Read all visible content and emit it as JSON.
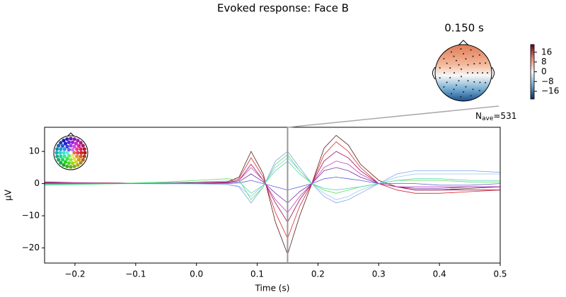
{
  "chart_data": {
    "type": "line",
    "title": "Evoked response: Face B",
    "xlabel": "Time (s)",
    "ylabel": "µV",
    "x": [
      -0.25,
      -0.2,
      -0.15,
      -0.1,
      -0.05,
      0,
      0.05,
      0.07,
      0.09,
      0.11,
      0.13,
      0.15,
      0.17,
      0.19,
      0.21,
      0.23,
      0.25,
      0.27,
      0.3,
      0.33,
      0.36,
      0.4,
      0.45,
      0.5
    ],
    "xlim": [
      -0.25,
      0.5
    ],
    "xticks": [
      {
        "value": -0.2,
        "label": "−0.2"
      },
      {
        "value": -0.1,
        "label": "−0.1"
      },
      {
        "value": 0,
        "label": "0.0"
      },
      0.1,
      0.2,
      0.3,
      0.4,
      0.5
    ],
    "ylim": [
      -24.7,
      17.5
    ],
    "yticks": [
      10,
      0,
      {
        "value": -10,
        "label": "−10"
      },
      {
        "value": -20,
        "label": "−20"
      }
    ],
    "series": [
      {
        "color": "#5a1a1a",
        "values": [
          0.5,
          0.3,
          0.2,
          0.1,
          0.2,
          0.3,
          0.5,
          2,
          10,
          3,
          -12,
          -22,
          -10,
          0,
          11,
          15,
          12,
          6,
          1,
          -1,
          -2,
          -2,
          -1.5,
          -1
        ]
      },
      {
        "color": "#d62728",
        "values": [
          0.3,
          0.2,
          0.1,
          0,
          0.1,
          0.2,
          0.4,
          1.5,
          8,
          2,
          -9,
          -17,
          -7,
          0,
          9,
          13,
          10,
          5,
          0,
          -2,
          -3,
          -3,
          -2.5,
          -2
        ]
      },
      {
        "color": "#a0105a",
        "values": [
          0.2,
          0.1,
          0,
          0,
          0.1,
          0.1,
          0.3,
          1,
          6,
          1,
          -6,
          -12,
          -5,
          0,
          7,
          10,
          8,
          4,
          0,
          -1,
          -2,
          -2,
          -2,
          -2
        ]
      },
      {
        "color": "#7b2f9e",
        "values": [
          0.1,
          0.1,
          0,
          0,
          0,
          0.1,
          0.2,
          0.6,
          3,
          0.5,
          -3,
          -6,
          -2.5,
          0,
          4,
          5,
          4,
          2,
          0,
          -1,
          -1.5,
          -1.5,
          -1,
          -1
        ]
      },
      {
        "color": "#5a5adc",
        "values": [
          0,
          0,
          0,
          0,
          0,
          0,
          0,
          0.2,
          1,
          0,
          -1,
          -2,
          -1,
          0,
          1.5,
          2,
          1.5,
          1,
          0,
          0,
          0,
          -0.5,
          -0.5,
          0
        ]
      },
      {
        "color": "#7fa8e8",
        "values": [
          -0.3,
          -0.2,
          -0.1,
          0,
          -0.1,
          -0.1,
          -0.3,
          -1,
          -6,
          -1,
          7,
          10,
          5,
          0,
          -4,
          -6,
          -5,
          -3,
          0,
          3,
          4,
          4,
          4,
          3.5
        ]
      },
      {
        "color": "#9cc4f0",
        "values": [
          -0.2,
          -0.1,
          0,
          0,
          -0.1,
          -0.1,
          -0.2,
          -0.8,
          -4,
          -0.5,
          5,
          8,
          4,
          0,
          -3,
          -5,
          -4,
          -2,
          0,
          2,
          3,
          3,
          3,
          3
        ]
      },
      {
        "color": "#5ee05e",
        "values": [
          -0.5,
          -0.3,
          -0.1,
          0.2,
          0.5,
          1,
          1.5,
          1.2,
          -5,
          -1,
          6,
          9,
          4,
          0,
          -2,
          -3,
          -2,
          -1,
          0,
          1,
          1,
          1,
          0.5,
          0.5
        ]
      },
      {
        "color": "#4fd8b0",
        "values": [
          -0.3,
          -0.2,
          0,
          0.1,
          0.3,
          0.5,
          0.8,
          0.6,
          -3,
          -0.5,
          4,
          7,
          3,
          0,
          -1.5,
          -2,
          -1.5,
          -1,
          0,
          1,
          1.5,
          1.5,
          1,
          1
        ]
      },
      {
        "color": "#c040c0",
        "values": [
          0.3,
          0.2,
          0.1,
          0,
          0.1,
          0.2,
          0.3,
          1,
          5,
          1,
          -5,
          -9,
          -4,
          0,
          5,
          7,
          6,
          3,
          0,
          -1,
          -1,
          -1,
          -1,
          -1
        ]
      }
    ],
    "time_marker": 0.15,
    "nave": {
      "symbol": "N",
      "subscript": "ave",
      "value": "=531"
    },
    "topomap": {
      "title": "0.150 s",
      "clim": [
        -22.3,
        22.3
      ],
      "colorbar_ticks": [
        16,
        8,
        0,
        {
          "value": -8,
          "label": "−8"
        },
        {
          "value": -16,
          "label": "−16"
        }
      ]
    }
  }
}
